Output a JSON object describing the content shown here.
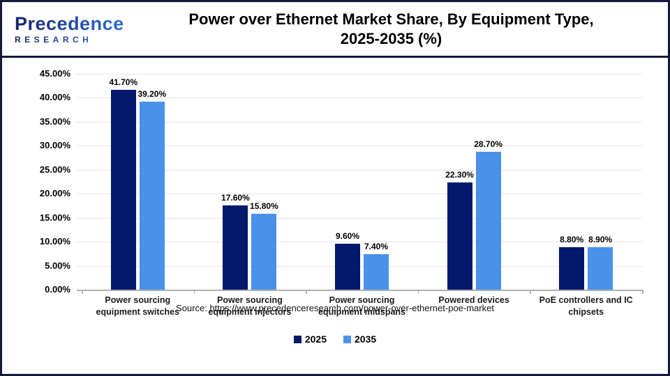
{
  "header": {
    "logo_line1": "Precedence",
    "logo_line2": "RESEARCH",
    "title_line1": "Power over Ethernet Market Share, By Equipment Type,",
    "title_line2": "2025-2035 (%)"
  },
  "chart_data": {
    "type": "bar",
    "title": "Power over Ethernet Market Share, By Equipment Type, 2025-2035 (%)",
    "categories": [
      "Power sourcing equipment switches",
      "Power sourcing equipment injectors",
      "Power sourcing equipment midspans",
      "Powered devices",
      "PoE controllers and IC chipsets"
    ],
    "category_lines": [
      [
        "Power sourcing",
        "equipment switches"
      ],
      [
        "Power sourcing",
        "equipment injectors"
      ],
      [
        "Power sourcing",
        "equipment midspans"
      ],
      [
        "Powered devices"
      ],
      [
        "PoE controllers and IC",
        "chipsets"
      ]
    ],
    "series": [
      {
        "name": "2025",
        "color": "#04196B",
        "values": [
          41.7,
          17.6,
          9.6,
          22.3,
          8.8
        ],
        "labels": [
          "41.70%",
          "17.60%",
          "9.60%",
          "22.30%",
          "8.80%"
        ]
      },
      {
        "name": "2035",
        "color": "#4A91E9",
        "values": [
          39.2,
          15.8,
          7.4,
          28.7,
          8.9
        ],
        "labels": [
          "39.20%",
          "15.80%",
          "7.40%",
          "28.70%",
          "8.90%"
        ]
      }
    ],
    "xlabel": "",
    "ylabel": "",
    "ylim": [
      0,
      45
    ],
    "y_ticks": [
      "45.00%",
      "40.00%",
      "35.00%",
      "30.00%",
      "25.00%",
      "20.00%",
      "15.00%",
      "10.00%",
      "5.00%",
      "0.00%"
    ],
    "grid": true,
    "legend_position": "bottom"
  },
  "footer": {
    "source": "Source: https://www.precedenceresearch.com/power-over-ethernet-poe-market"
  }
}
